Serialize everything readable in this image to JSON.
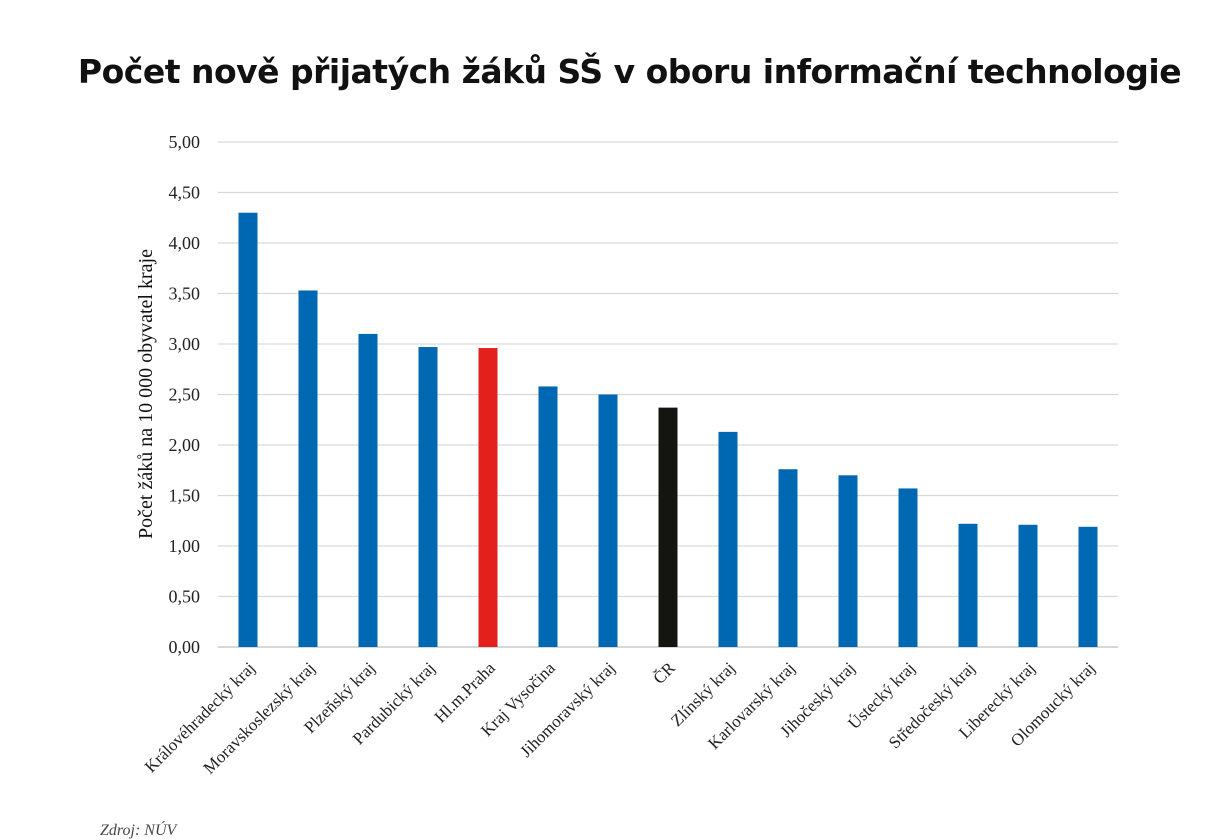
{
  "chart_data": {
    "type": "bar",
    "title": "Počet nově přijatých žáků SŠ v oboru informační technologie",
    "ylabel": "Počet žáků na 10 000 obyvatel kraje",
    "xlabel": "",
    "ylim": [
      0,
      5
    ],
    "yticks": [
      "0,00",
      "0,50",
      "1,00",
      "1,50",
      "2,00",
      "2,50",
      "3,00",
      "3,50",
      "4,00",
      "4,50",
      "5,00"
    ],
    "grid": true,
    "categories": [
      "Královéhradecký kraj",
      "Moravskoslezský kraj",
      "Plzeňský kraj",
      "Pardubický kraj",
      "Hl.m.Praha",
      "Kraj Vysočina",
      "Jihomoravský kraj",
      "ČR",
      "Zlínský kraj",
      "Karlovarský kraj",
      "Jihočeský kraj",
      "Ústecký kraj",
      "Středočeský kraj",
      "Liberecký kraj",
      "Olomoucký kraj"
    ],
    "values": [
      4.3,
      3.53,
      3.1,
      2.97,
      2.96,
      2.58,
      2.5,
      2.37,
      2.13,
      1.76,
      1.7,
      1.57,
      1.22,
      1.21,
      1.19
    ],
    "colors": [
      "#0068b3",
      "#0068b3",
      "#0068b3",
      "#0068b3",
      "#e3201c",
      "#0068b3",
      "#0068b3",
      "#141410",
      "#0068b3",
      "#0068b3",
      "#0068b3",
      "#0068b3",
      "#0068b3",
      "#0068b3",
      "#0068b3"
    ]
  },
  "source_text": "Zdroj: NÚV"
}
